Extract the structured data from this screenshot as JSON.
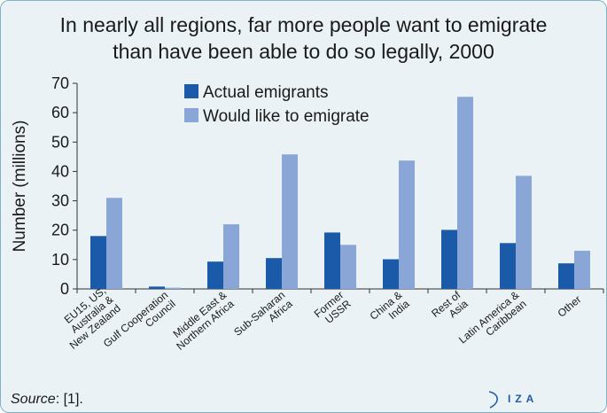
{
  "chart_data": {
    "type": "bar",
    "title_lines": [
      "In nearly all regions, far more people want to emigrate",
      "than have been able to do so legally, 2000"
    ],
    "ylabel": "Number (millions)",
    "ylim": [
      0,
      70
    ],
    "yticks": [
      0,
      10,
      20,
      30,
      40,
      50,
      60,
      70
    ],
    "categories": [
      [
        "EU15, US,",
        "Australia &",
        "New Zealand"
      ],
      [
        "Gulf Cooperation",
        "Council"
      ],
      [
        "Middle East &",
        "Northern Africa"
      ],
      [
        "Sub-Saharan",
        "Africa"
      ],
      [
        "Former",
        "USSR"
      ],
      [
        "China &",
        "India"
      ],
      [
        "Rest of",
        "Asia"
      ],
      [
        "Latin America &",
        "Caribbean"
      ],
      [
        "Other"
      ]
    ],
    "series": [
      {
        "name": "Actual emigrants",
        "color": "#1a5aa8",
        "values": [
          18,
          0.8,
          9.3,
          10.5,
          19.2,
          10.1,
          20.1,
          15.6,
          8.7
        ]
      },
      {
        "name": "Would like to emigrate",
        "color": "#8aa6d6",
        "values": [
          31,
          0.4,
          22,
          45.8,
          15,
          43.7,
          65.4,
          38.5,
          13
        ]
      }
    ],
    "legend_position": "top-center",
    "grid": false
  },
  "footer": {
    "source_label": "Source",
    "source_rest": ": [1].",
    "logo_text": "IZA"
  }
}
